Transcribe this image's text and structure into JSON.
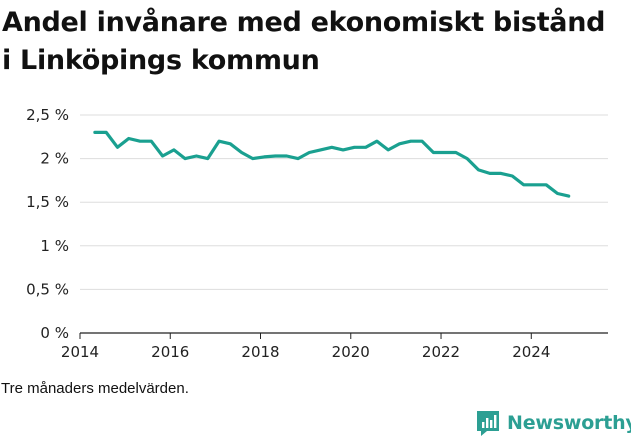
{
  "title": "Andel invånare med ekonomiskt bistånd i Linköpings kommun",
  "caption": "Tre månaders medelvärden.",
  "brand": {
    "name": "Newsworthy",
    "icon": "newsworthy-logo-icon",
    "color": "#2c9f93"
  },
  "chart_data": {
    "type": "line",
    "title": "Andel invånare med ekonomiskt bistånd i Linköpings kommun",
    "xlabel": "",
    "ylabel": "",
    "xlim": [
      2014,
      2025.7
    ],
    "ylim": [
      0,
      2.5
    ],
    "x_ticks": [
      "2014",
      "2016",
      "2018",
      "2020",
      "2022",
      "2024"
    ],
    "y_ticks": [
      "0 %",
      "0,5 %",
      "1 %",
      "1,5 %",
      "2 %",
      "2,5 %"
    ],
    "grid": true,
    "legend": "none",
    "series": [
      {
        "color": "#1aa090",
        "x": [
          2014.33,
          2014.58,
          2014.83,
          2015.08,
          2015.33,
          2015.58,
          2015.83,
          2016.08,
          2016.33,
          2016.58,
          2016.83,
          2017.08,
          2017.33,
          2017.58,
          2017.83,
          2018.08,
          2018.33,
          2018.58,
          2018.83,
          2019.08,
          2019.33,
          2019.58,
          2019.83,
          2020.08,
          2020.33,
          2020.58,
          2020.83,
          2021.08,
          2021.33,
          2021.58,
          2021.83,
          2022.08,
          2022.33,
          2022.58,
          2022.83,
          2023.08,
          2023.33,
          2023.58,
          2023.83,
          2024.08,
          2024.33,
          2024.58,
          2024.83
        ],
        "values": [
          2.3,
          2.3,
          2.13,
          2.23,
          2.2,
          2.2,
          2.03,
          2.1,
          2.0,
          2.03,
          2.0,
          2.2,
          2.17,
          2.07,
          2.0,
          2.02,
          2.03,
          2.03,
          2.0,
          2.07,
          2.1,
          2.13,
          2.1,
          2.13,
          2.13,
          2.2,
          2.1,
          2.17,
          2.2,
          2.2,
          2.07,
          2.07,
          2.07,
          2.0,
          1.87,
          1.83,
          1.83,
          1.8,
          1.7,
          1.7,
          1.7,
          1.6,
          1.57
        ]
      }
    ]
  }
}
